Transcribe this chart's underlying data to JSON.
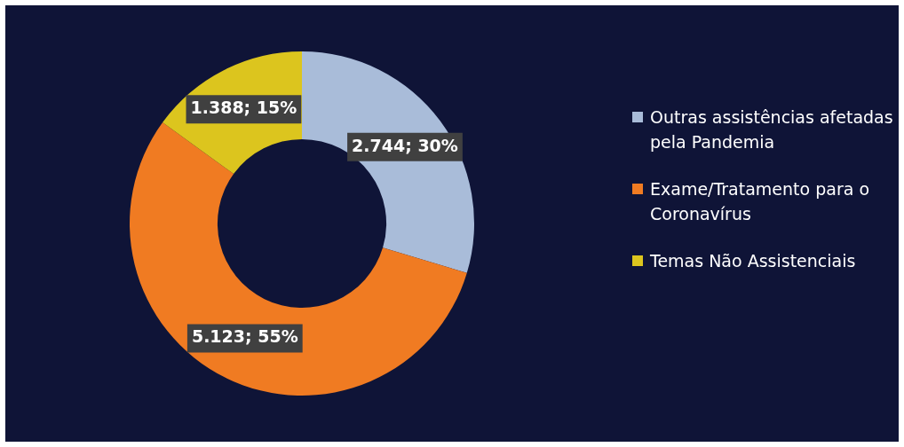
{
  "chart_data": {
    "type": "donut",
    "categories": [
      "Outras assistências afetadas pela Pandemia",
      "Exame/Tratamento para o Coronavírus",
      "Temas Não Assistenciais"
    ],
    "values": [
      2744,
      5123,
      1388
    ],
    "colors": [
      "#a9bcd9",
      "#f07b22",
      "#dcc51e"
    ],
    "value_labels": [
      "2.744; 30%",
      "5.123; 55%",
      "1.388; 15%"
    ],
    "legend": "right"
  }
}
